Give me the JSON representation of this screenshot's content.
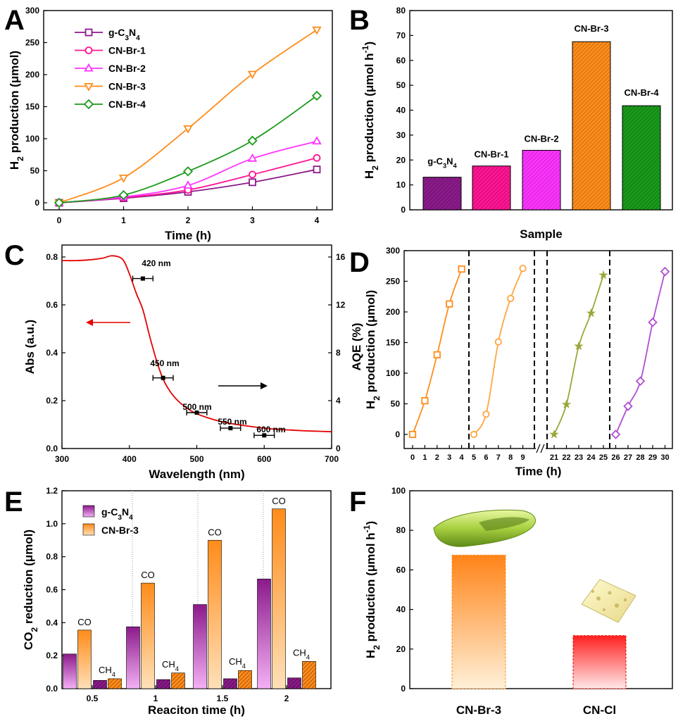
{
  "colors": {
    "purple": "#8B1A8B",
    "pink": "#FF1493",
    "magenta": "#FF33FF",
    "orange": "#FF8C1A",
    "green": "#1A9A1A",
    "olive": "#9AA63A",
    "lightorange": "#FFA540",
    "violet": "#B04ED0",
    "red": "#E60000"
  },
  "panels": {
    "a": "A",
    "b": "B",
    "c": "C",
    "d": "D",
    "e": "E",
    "f": "F"
  },
  "chart_data": [
    {
      "id": "A",
      "type": "line",
      "xlabel": "Time (h)",
      "ylabel_parts": {
        "main": "H",
        "sub": "2",
        "rest": " production (μmol)"
      },
      "xlim": [
        0,
        4
      ],
      "ylim": [
        0,
        300
      ],
      "xticks": [
        "0",
        "1",
        "2",
        "3",
        "4"
      ],
      "yticks": [
        "0",
        "50",
        "100",
        "150",
        "200",
        "250",
        "300"
      ],
      "x": [
        0,
        1,
        2,
        3,
        4
      ],
      "series": [
        {
          "name": "g-C3N4",
          "label_parts": [
            "g-C",
            "3",
            "N",
            "4"
          ],
          "marker": "square",
          "color": "#8B1A8B",
          "values": [
            0,
            7,
            17,
            32,
            52
          ]
        },
        {
          "name": "CN-Br-1",
          "marker": "circle",
          "color": "#FF1493",
          "values": [
            0,
            8,
            20,
            44,
            70
          ]
        },
        {
          "name": "CN-Br-2",
          "marker": "triangle-up",
          "color": "#FF33FF",
          "values": [
            0,
            9,
            27,
            69,
            96
          ]
        },
        {
          "name": "CN-Br-3",
          "marker": "triangle-down",
          "color": "#FF8C1A",
          "values": [
            0,
            39,
            116,
            201,
            270
          ]
        },
        {
          "name": "CN-Br-4",
          "marker": "diamond",
          "color": "#1A9A1A",
          "values": [
            0,
            12,
            49,
            97,
            167
          ]
        }
      ],
      "legend": "top-left"
    },
    {
      "id": "B",
      "type": "bar",
      "xlabel": "Sample",
      "ylabel_parts": {
        "main": "H",
        "sub": "2",
        "rest": " production (μmol h",
        "sup": "-1",
        "end": ")"
      },
      "ylim": [
        0,
        80
      ],
      "yticks": [
        "0",
        "10",
        "20",
        "30",
        "40",
        "50",
        "60",
        "70",
        "80"
      ],
      "categories": [
        "g-C3N4",
        "CN-Br-1",
        "CN-Br-2",
        "CN-Br-3",
        "CN-Br-4"
      ],
      "bar_labels": [
        "g-C3N4",
        "CN-Br-1",
        "CN-Br-2",
        "CN-Br-3",
        "CN-Br-4"
      ],
      "values": [
        13.1,
        17.6,
        23.9,
        67.5,
        41.8
      ],
      "colors": [
        "#8B1A8B",
        "#FF1493",
        "#FF33FF",
        "#FF8C1A",
        "#1A9A1A"
      ]
    },
    {
      "id": "C",
      "type": "line",
      "xlabel": "Wavelength (nm)",
      "ylabel": "Abs (a.u.)",
      "y2label": "AQE (%)",
      "xlim": [
        300,
        700
      ],
      "ylim": [
        0,
        0.85
      ],
      "y2lim": [
        0,
        17
      ],
      "xticks": [
        "300",
        "400",
        "500",
        "600",
        "700"
      ],
      "yticks": [
        "0.0",
        "0.2",
        "0.4",
        "0.6",
        "0.8"
      ],
      "y2ticks": [
        "0",
        "4",
        "8",
        "12",
        "16"
      ],
      "absorbance": {
        "x": [
          300,
          320,
          340,
          360,
          375,
          390,
          400,
          410,
          420,
          430,
          440,
          450,
          460,
          470,
          480,
          490,
          500,
          520,
          540,
          560,
          580,
          600,
          620,
          640,
          660,
          680,
          700
        ],
        "y": [
          0.785,
          0.785,
          0.788,
          0.795,
          0.805,
          0.79,
          0.73,
          0.65,
          0.58,
          0.47,
          0.37,
          0.29,
          0.24,
          0.205,
          0.18,
          0.16,
          0.145,
          0.125,
          0.11,
          0.1,
          0.092,
          0.085,
          0.08,
          0.077,
          0.074,
          0.072,
          0.07
        ]
      },
      "aqe": {
        "x": [
          420,
          450,
          500,
          550,
          600
        ],
        "y": [
          14.2,
          5.9,
          3.0,
          1.7,
          1.1
        ],
        "xerr": [
          15,
          15,
          15,
          15,
          15
        ],
        "labels": [
          "420 nm",
          "450 nm",
          "500 nm",
          "550 nm",
          "600 nm"
        ]
      }
    },
    {
      "id": "D",
      "type": "line",
      "xlabel": "Time (h)",
      "ylabel_parts": {
        "main": "H",
        "sub": "2",
        "rest": " production (μmol)"
      },
      "ylim": [
        0,
        300
      ],
      "xticks": [
        "0",
        "1",
        "2",
        "3",
        "4",
        "5",
        "6",
        "7",
        "8",
        "9",
        "21",
        "22",
        "23",
        "24",
        "25",
        "26",
        "27",
        "28",
        "29",
        "30"
      ],
      "yticks": [
        "0",
        "50",
        "100",
        "150",
        "200",
        "250",
        "300"
      ],
      "cycles": [
        {
          "x": [
            0,
            1,
            2,
            3,
            4
          ],
          "values": [
            0,
            55,
            130,
            213,
            270
          ],
          "marker": "square",
          "color": "#FF8C1A"
        },
        {
          "x": [
            5,
            6,
            7,
            8,
            9
          ],
          "values": [
            0,
            33,
            151,
            222,
            271
          ],
          "marker": "circle",
          "color": "#FFA540"
        },
        {
          "x": [
            21,
            22,
            23,
            24,
            25
          ],
          "values": [
            0,
            49,
            144,
            198,
            260
          ],
          "marker": "star",
          "color": "#9AA63A"
        },
        {
          "x": [
            26,
            27,
            28,
            29,
            30
          ],
          "values": [
            0,
            46,
            87,
            183,
            266
          ],
          "marker": "diamond",
          "color": "#B04ED0"
        }
      ]
    },
    {
      "id": "E",
      "type": "bar",
      "xlabel": "Reaciton time (h)",
      "ylabel_parts": {
        "main": "CO",
        "sub": "2",
        "rest": " reduction (μmol)"
      },
      "ylim": [
        0,
        1.2
      ],
      "yticks": [
        "0.0",
        "0.2",
        "0.4",
        "0.6",
        "0.8",
        "1.0",
        "1.2"
      ],
      "categories": [
        "0.5",
        "1",
        "1.5",
        "2"
      ],
      "series": [
        {
          "name": "g-C3N4",
          "label_parts": [
            "g-C",
            "3",
            "N",
            "4"
          ],
          "color": "#8B1A8B",
          "values": [
            0.21,
            0.375,
            0.51,
            0.665
          ]
        },
        {
          "name": "CN-Br-3",
          "color": "#FF8C1A",
          "values": [
            0.355,
            0.64,
            0.9,
            1.09
          ]
        },
        {
          "name": "g-C3N4 CH4",
          "color": "#8B1A8B",
          "values": [
            0.05,
            0.055,
            0.06,
            0.065
          ]
        },
        {
          "name": "CN-Br-3 CH4",
          "color": "#FF8C1A",
          "values": [
            0.06,
            0.095,
            0.11,
            0.165
          ]
        }
      ],
      "annotations": {
        "co": "CO",
        "ch4_main": "CH",
        "ch4_sub": "4"
      },
      "legend": "top-left"
    },
    {
      "id": "F",
      "type": "bar",
      "ylabel_parts": {
        "main": "H",
        "sub": "2",
        "rest": " production (μmol h",
        "sup": "-1",
        "end": ")"
      },
      "ylim": [
        0,
        100
      ],
      "yticks": [
        "0",
        "20",
        "40",
        "60",
        "80",
        "100"
      ],
      "categories": [
        "CN-Br-3",
        "CN-Cl"
      ],
      "values": [
        67.5,
        26.8
      ],
      "colors": [
        "#FF8C1A",
        "#E60000"
      ]
    }
  ]
}
